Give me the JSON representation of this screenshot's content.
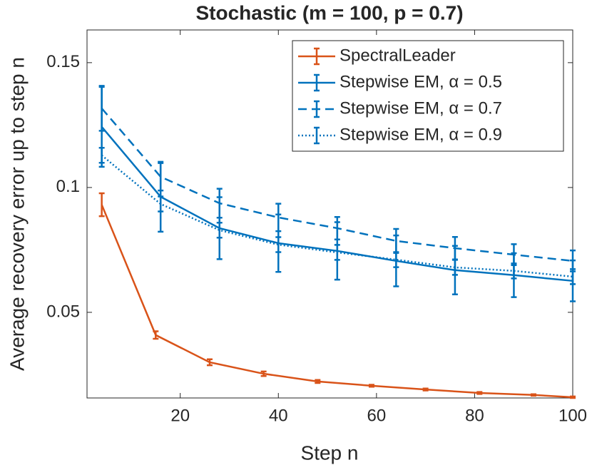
{
  "chart_data": {
    "type": "line",
    "title": "Stochastic (m = 100, p = 0.7)",
    "xlabel": "Step n",
    "ylabel": "Average recovery error up to step n",
    "xlim": [
      1,
      100
    ],
    "ylim": [
      0.0157,
      0.1631
    ],
    "xticks": [
      20,
      40,
      60,
      80,
      100
    ],
    "yticks": [
      0.05,
      0.1,
      0.15
    ],
    "legend": "upper right",
    "series": [
      {
        "name": "SpectralLeader",
        "color": "#d95319",
        "linestyle": "solid",
        "x": [
          4,
          15,
          26,
          37,
          48,
          59,
          70,
          81,
          92,
          100
        ],
        "values": [
          0.0931,
          0.0409,
          0.03,
          0.0254,
          0.0223,
          0.0206,
          0.0191,
          0.0177,
          0.0169,
          0.016
        ],
        "errors": [
          0.0046,
          0.0015,
          0.0012,
          0.0009,
          0.0006,
          0.0004,
          0.0004,
          0.0004,
          0.0003,
          0.0003
        ]
      },
      {
        "name": "Stepwise EM, α = 0.5",
        "color": "#0072bd",
        "linestyle": "solid",
        "x": [
          4,
          16,
          28,
          40,
          52,
          64,
          76,
          88,
          100
        ],
        "values": [
          0.1243,
          0.0963,
          0.0837,
          0.0777,
          0.0746,
          0.0706,
          0.0669,
          0.0649,
          0.0626
        ],
        "errors": [
          0.016,
          0.014,
          0.0124,
          0.0115,
          0.0115,
          0.0102,
          0.0097,
          0.0088,
          0.0082
        ]
      },
      {
        "name": "Stepwise EM, α = 0.7",
        "color": "#0072bd",
        "linestyle": "dashed",
        "x": [
          4,
          16,
          28,
          40,
          52,
          64,
          76,
          88,
          100
        ],
        "values": [
          0.1317,
          0.1043,
          0.0937,
          0.088,
          0.0837,
          0.0786,
          0.0757,
          0.0731,
          0.0706
        ],
        "errors": [
          0.009,
          0.0055,
          0.0058,
          0.0055,
          0.0045,
          0.0048,
          0.0045,
          0.0042,
          0.0042
        ]
      },
      {
        "name": "Stepwise EM, α = 0.9",
        "color": "#0072bd",
        "linestyle": "dotted",
        "x": [
          4,
          16,
          28,
          40,
          52,
          64,
          76,
          88,
          100
        ],
        "values": [
          0.1129,
          0.0934,
          0.0829,
          0.0771,
          0.074,
          0.0711,
          0.068,
          0.0666,
          0.0643
        ],
        "errors": [
          0.003,
          0.003,
          0.003,
          0.003,
          0.003,
          0.003,
          0.003,
          0.003,
          0.003
        ]
      }
    ]
  }
}
